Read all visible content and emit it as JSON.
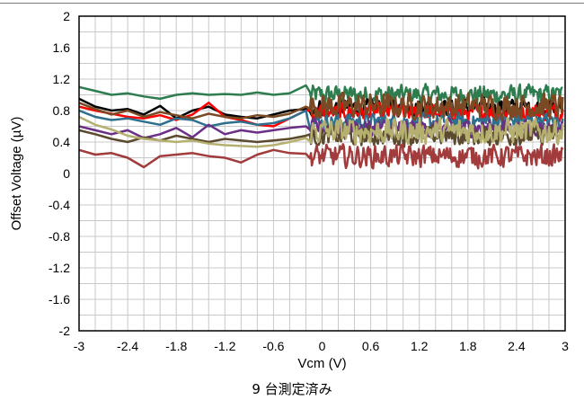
{
  "chart_data": {
    "type": "line",
    "title": "",
    "xlabel": "Vcm (V)",
    "ylabel": "Offset Voltage (µV)",
    "xlim": [
      -3,
      3
    ],
    "ylim": [
      -2,
      2
    ],
    "x_ticks": [
      "-3",
      "-2.4",
      "-1.8",
      "-1.2",
      "-0.6",
      "0",
      "0.6",
      "1.2",
      "1.8",
      "2.4",
      "3"
    ],
    "y_ticks": [
      "2",
      "1.6",
      "1.2",
      "0.8",
      "0.4",
      "0",
      "-0.4",
      "-0.8",
      "-1.2",
      "-1.6",
      "-2"
    ],
    "x_tick_values": [
      -3,
      -2.4,
      -1.8,
      -1.2,
      -0.6,
      0,
      0.6,
      1.2,
      1.8,
      2.4,
      3
    ],
    "y_tick_values": [
      2,
      1.6,
      1.2,
      0.8,
      0.4,
      0,
      -0.4,
      -0.8,
      -1.2,
      -1.6,
      -2
    ],
    "grid": true,
    "legend": "none",
    "series": [
      {
        "color": "#2e7d4f",
        "base": 1.0,
        "noise": 0.07,
        "points": [
          [
            -3,
            1.1
          ],
          [
            -2.8,
            1.05
          ],
          [
            -2.6,
            1.0
          ],
          [
            -2.4,
            1.02
          ],
          [
            -2.2,
            0.98
          ],
          [
            -2.0,
            0.95
          ],
          [
            -1.8,
            1.0
          ],
          [
            -1.6,
            1.02
          ],
          [
            -1.4,
            1.0
          ],
          [
            -1.2,
            1.01
          ],
          [
            -1.0,
            1.0
          ],
          [
            -0.8,
            1.03
          ],
          [
            -0.6,
            1.0
          ],
          [
            -0.4,
            1.02
          ],
          [
            -0.2,
            1.12
          ]
        ]
      },
      {
        "color": "#000000",
        "base": 0.84,
        "noise": 0.06,
        "points": [
          [
            -3,
            0.95
          ],
          [
            -2.8,
            0.85
          ],
          [
            -2.6,
            0.8
          ],
          [
            -2.4,
            0.82
          ],
          [
            -2.2,
            0.75
          ],
          [
            -2.0,
            0.86
          ],
          [
            -1.8,
            0.7
          ],
          [
            -1.6,
            0.8
          ],
          [
            -1.4,
            0.85
          ],
          [
            -1.2,
            0.75
          ],
          [
            -1.0,
            0.72
          ],
          [
            -0.8,
            0.7
          ],
          [
            -0.6,
            0.75
          ],
          [
            -0.4,
            0.8
          ],
          [
            -0.2,
            0.82
          ]
        ]
      },
      {
        "color": "#ff0000",
        "base": 0.78,
        "noise": 0.06,
        "points": [
          [
            -3,
            0.85
          ],
          [
            -2.8,
            0.8
          ],
          [
            -2.6,
            0.76
          ],
          [
            -2.4,
            0.72
          ],
          [
            -2.2,
            0.7
          ],
          [
            -2.0,
            0.74
          ],
          [
            -1.8,
            0.68
          ],
          [
            -1.6,
            0.75
          ],
          [
            -1.4,
            0.9
          ],
          [
            -1.2,
            0.72
          ],
          [
            -1.0,
            0.68
          ],
          [
            -0.8,
            0.62
          ],
          [
            -0.6,
            0.6
          ],
          [
            -0.4,
            0.7
          ],
          [
            -0.2,
            0.8
          ]
        ]
      },
      {
        "color": "#2e6f8e",
        "base": 0.66,
        "noise": 0.06,
        "points": [
          [
            -3,
            0.8
          ],
          [
            -2.8,
            0.72
          ],
          [
            -2.6,
            0.68
          ],
          [
            -2.4,
            0.7
          ],
          [
            -2.2,
            0.66
          ],
          [
            -2.0,
            0.62
          ],
          [
            -1.8,
            0.7
          ],
          [
            -1.6,
            0.68
          ],
          [
            -1.4,
            0.6
          ],
          [
            -1.2,
            0.64
          ],
          [
            -1.0,
            0.66
          ],
          [
            -0.8,
            0.62
          ],
          [
            -0.6,
            0.64
          ],
          [
            -0.4,
            0.7
          ],
          [
            -0.2,
            0.8
          ]
        ]
      },
      {
        "color": "#7a4a24",
        "base": 0.86,
        "noise": 0.09,
        "points": [
          [
            -3,
            0.9
          ],
          [
            -2.8,
            0.82
          ],
          [
            -2.6,
            0.75
          ],
          [
            -2.4,
            0.8
          ],
          [
            -2.2,
            0.72
          ],
          [
            -2.0,
            0.78
          ],
          [
            -1.8,
            0.74
          ],
          [
            -1.6,
            0.7
          ],
          [
            -1.4,
            0.76
          ],
          [
            -1.2,
            0.72
          ],
          [
            -1.0,
            0.7
          ],
          [
            -0.8,
            0.74
          ],
          [
            -0.6,
            0.72
          ],
          [
            -0.4,
            0.76
          ],
          [
            -0.2,
            0.85
          ]
        ]
      },
      {
        "color": "#6b2f86",
        "base": 0.58,
        "noise": 0.06,
        "points": [
          [
            -3,
            0.6
          ],
          [
            -2.8,
            0.55
          ],
          [
            -2.6,
            0.5
          ],
          [
            -2.4,
            0.55
          ],
          [
            -2.2,
            0.45
          ],
          [
            -2.0,
            0.5
          ],
          [
            -1.8,
            0.58
          ],
          [
            -1.6,
            0.46
          ],
          [
            -1.4,
            0.62
          ],
          [
            -1.2,
            0.5
          ],
          [
            -1.0,
            0.55
          ],
          [
            -0.8,
            0.52
          ],
          [
            -0.6,
            0.55
          ],
          [
            -0.4,
            0.58
          ],
          [
            -0.2,
            0.6
          ]
        ]
      },
      {
        "color": "#5b4a2e",
        "base": 0.48,
        "noise": 0.07,
        "points": [
          [
            -3,
            0.55
          ],
          [
            -2.8,
            0.5
          ],
          [
            -2.6,
            0.44
          ],
          [
            -2.4,
            0.4
          ],
          [
            -2.2,
            0.46
          ],
          [
            -2.0,
            0.42
          ],
          [
            -1.8,
            0.48
          ],
          [
            -1.6,
            0.44
          ],
          [
            -1.4,
            0.4
          ],
          [
            -1.2,
            0.44
          ],
          [
            -1.0,
            0.42
          ],
          [
            -0.8,
            0.4
          ],
          [
            -0.6,
            0.42
          ],
          [
            -0.4,
            0.44
          ],
          [
            -0.2,
            0.48
          ]
        ]
      },
      {
        "color": "#b5b070",
        "base": 0.54,
        "noise": 0.09,
        "points": [
          [
            -3,
            0.72
          ],
          [
            -2.8,
            0.62
          ],
          [
            -2.6,
            0.56
          ],
          [
            -2.4,
            0.48
          ],
          [
            -2.2,
            0.44
          ],
          [
            -2.0,
            0.42
          ],
          [
            -1.8,
            0.4
          ],
          [
            -1.6,
            0.42
          ],
          [
            -1.4,
            0.38
          ],
          [
            -1.2,
            0.36
          ],
          [
            -1.0,
            0.35
          ],
          [
            -0.8,
            0.34
          ],
          [
            -0.6,
            0.36
          ],
          [
            -0.4,
            0.4
          ],
          [
            -0.2,
            0.45
          ]
        ]
      },
      {
        "color": "#a23b3b",
        "base": 0.22,
        "noise": 0.08,
        "points": [
          [
            -3,
            0.3
          ],
          [
            -2.8,
            0.24
          ],
          [
            -2.6,
            0.26
          ],
          [
            -2.4,
            0.2
          ],
          [
            -2.2,
            0.08
          ],
          [
            -2.0,
            0.22
          ],
          [
            -1.8,
            0.24
          ],
          [
            -1.6,
            0.26
          ],
          [
            -1.4,
            0.22
          ],
          [
            -1.2,
            0.2
          ],
          [
            -1.0,
            0.14
          ],
          [
            -0.8,
            0.24
          ],
          [
            -0.6,
            0.3
          ],
          [
            -0.4,
            0.26
          ],
          [
            -0.2,
            0.25
          ]
        ]
      }
    ]
  },
  "caption": "9 台測定済み"
}
